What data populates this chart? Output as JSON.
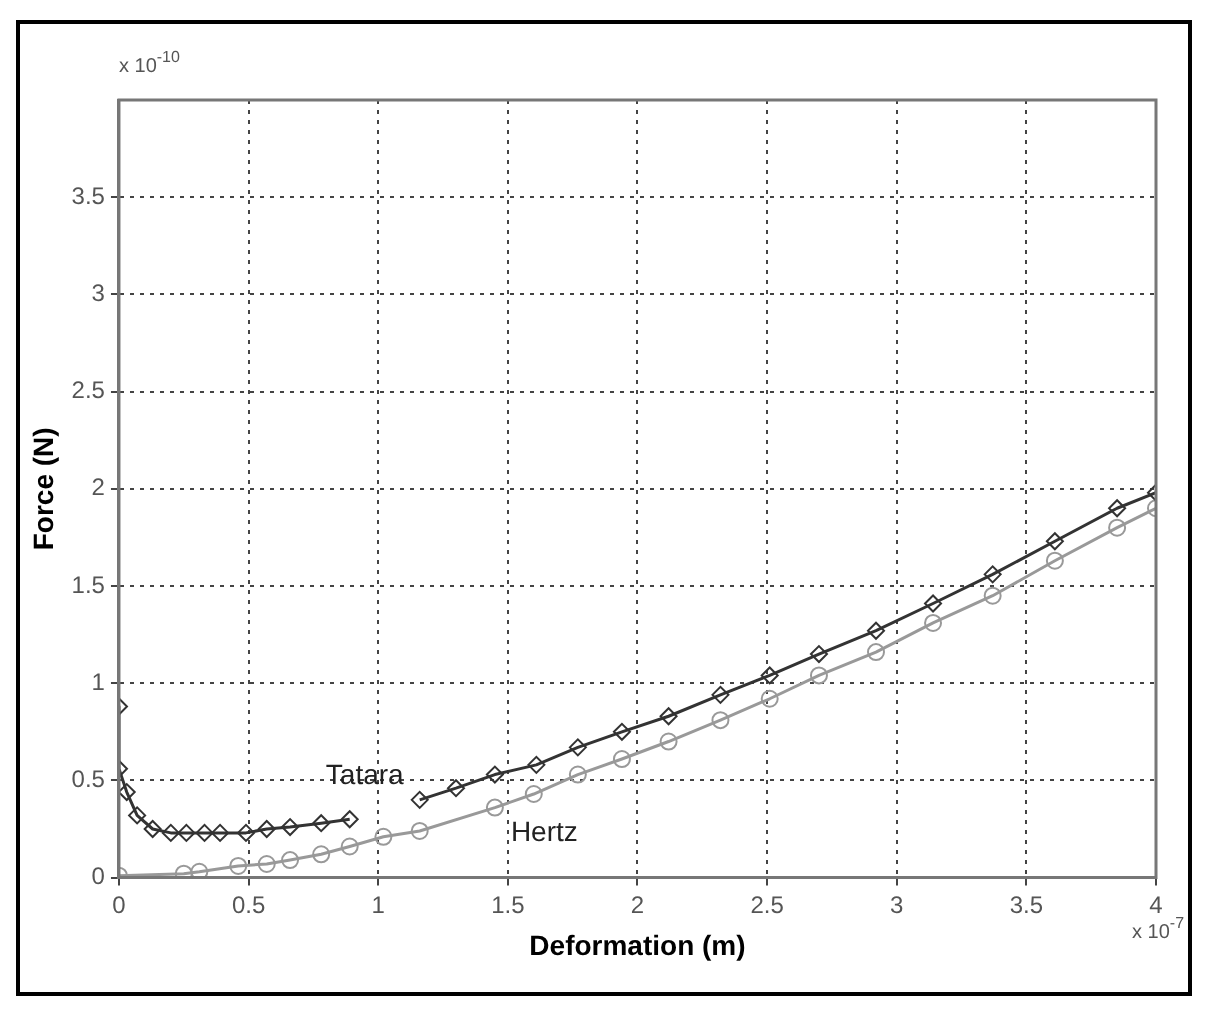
{
  "chart_data": {
    "type": "line",
    "xlabel": "Deformation (m)",
    "ylabel": "Force (N)",
    "xlim": [
      0,
      4
    ],
    "xticks": [
      0,
      0.5,
      1,
      1.5,
      2,
      2.5,
      3,
      3.5,
      4
    ],
    "ylim": [
      0,
      4
    ],
    "yticks": [
      0,
      0.5,
      1,
      1.5,
      2,
      2.5,
      3,
      3.5
    ],
    "grid": true,
    "line_style": "solid",
    "annotations": [
      "x 10$^{-10}$",
      "x 10$^{-7}$"
    ],
    "series": [
      {
        "name": "Tatara",
        "color": "#333333",
        "marker": "diamond",
        "x": [
          0,
          0,
          0.03,
          0.07,
          0.13,
          0.2,
          0.26,
          0.33,
          0.39,
          0.49,
          0.57,
          0.66,
          0.78,
          0.89,
          0.92,
          1.16,
          1.3,
          1.45,
          1.61,
          1.77,
          1.94,
          2.12,
          2.32,
          2.51,
          2.7,
          2.92,
          3.14,
          3.37,
          3.61,
          3.85,
          4
        ],
        "values": [
          0.88,
          0.56,
          0.44,
          0.32,
          0.25,
          0.23,
          0.23,
          0.23,
          0.23,
          0.23,
          0.25,
          0.26,
          0.28,
          0.3,
          null,
          0.4,
          0.46,
          0.53,
          0.58,
          0.67,
          0.75,
          0.83,
          0.94,
          1.04,
          1.15,
          1.27,
          1.41,
          1.56,
          1.73,
          1.9,
          1.98
        ]
      },
      {
        "name": "Hertz",
        "color": "#999999",
        "marker": "circle",
        "x": [
          0,
          0.25,
          0.31,
          0.46,
          0.57,
          0.66,
          0.78,
          0.89,
          1.02,
          1.16,
          1.45,
          1.6,
          1.77,
          1.94,
          2.12,
          2.32,
          2.51,
          2.7,
          2.92,
          3.14,
          3.37,
          3.61,
          3.85,
          4
        ],
        "values": [
          0.01,
          0.02,
          0.03,
          0.06,
          0.07,
          0.09,
          0.12,
          0.16,
          0.21,
          0.24,
          0.36,
          0.43,
          0.53,
          0.61,
          0.7,
          0.81,
          0.92,
          1.04,
          1.16,
          1.31,
          1.45,
          1.63,
          1.8,
          1.9
        ]
      }
    ]
  }
}
